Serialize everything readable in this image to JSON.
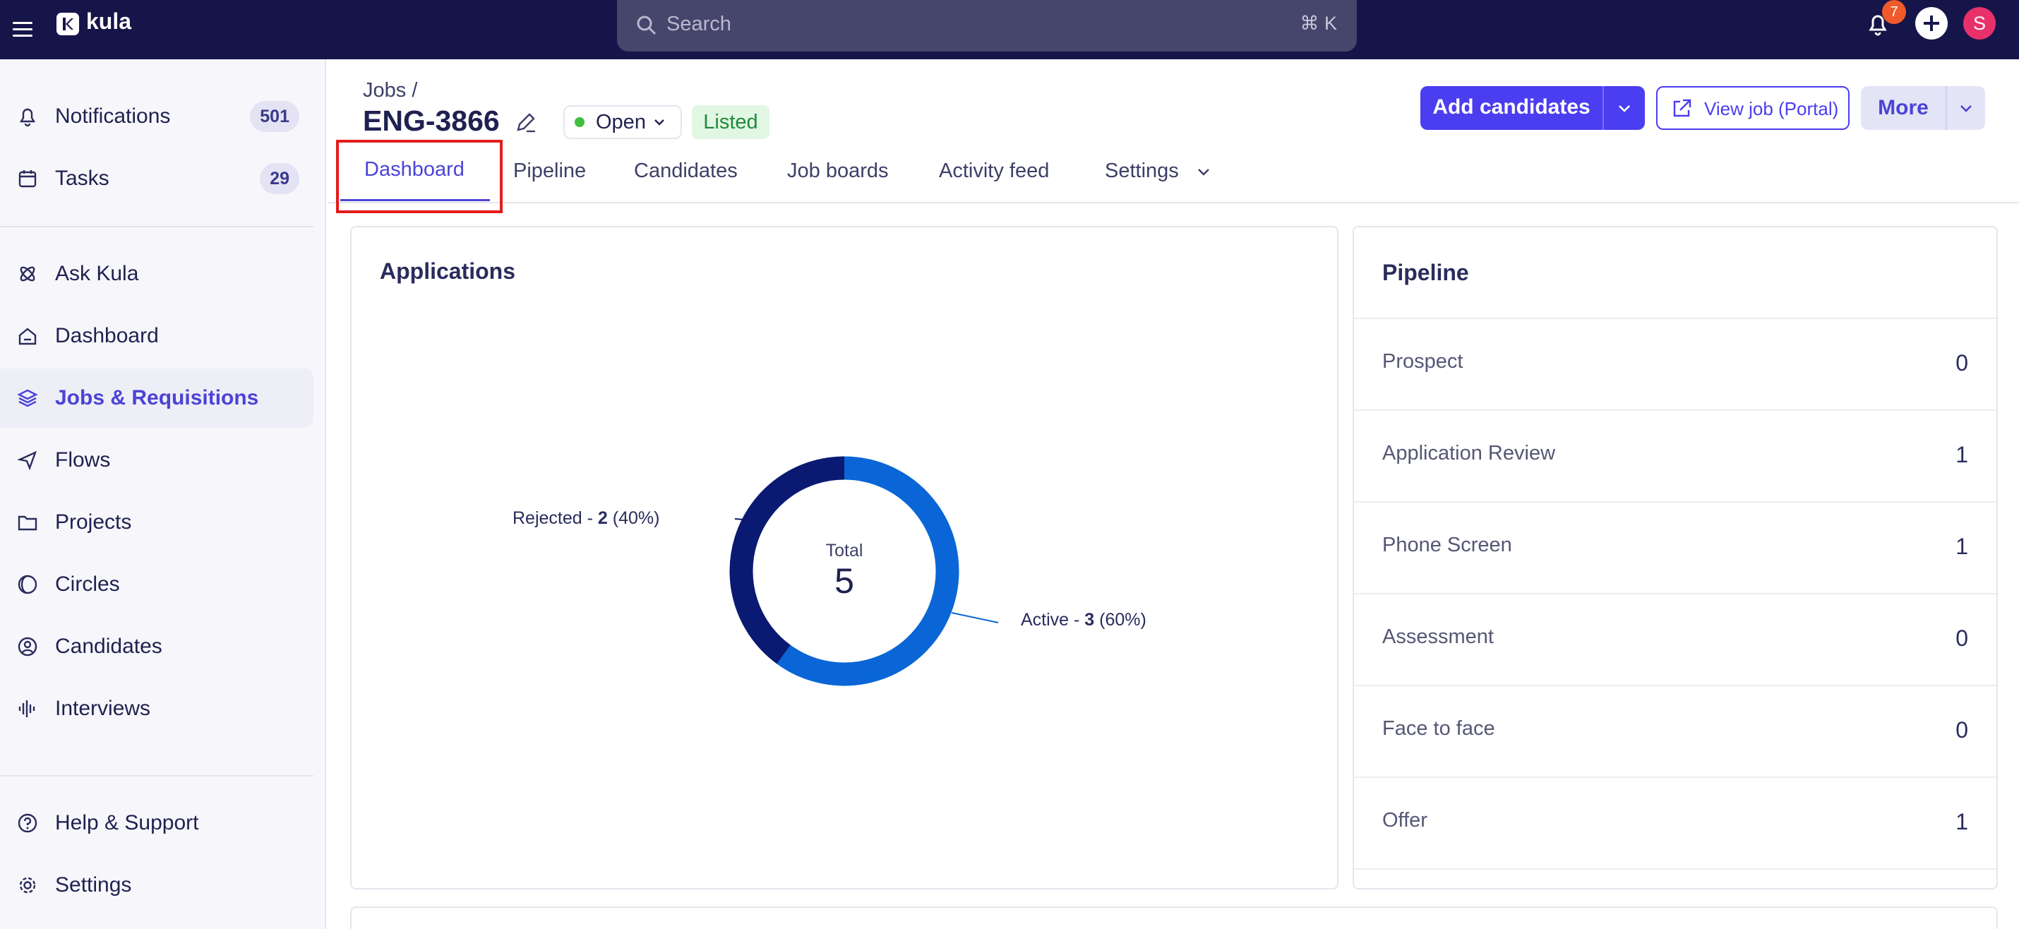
{
  "app": {
    "name": "kula"
  },
  "search": {
    "placeholder": "Search",
    "shortcut": "⌘ K"
  },
  "topbar": {
    "notification_count": "7",
    "user_initial": "S"
  },
  "sidebar": {
    "items": [
      {
        "label": "Notifications",
        "badge": "501",
        "icon": "bell-icon"
      },
      {
        "label": "Tasks",
        "badge": "29",
        "icon": "calendar-icon"
      },
      {
        "label": "Ask Kula",
        "icon": "atom-icon"
      },
      {
        "label": "Dashboard",
        "icon": "home-icon"
      },
      {
        "label": "Jobs & Requisitions",
        "icon": "layers-icon",
        "active": true
      },
      {
        "label": "Flows",
        "icon": "send-icon"
      },
      {
        "label": "Projects",
        "icon": "folder-icon"
      },
      {
        "label": "Circles",
        "icon": "circles-icon"
      },
      {
        "label": "Candidates",
        "icon": "user-circle-icon"
      },
      {
        "label": "Interviews",
        "icon": "audio-wave-icon"
      },
      {
        "label": "Help & Support",
        "icon": "help-icon"
      },
      {
        "label": "Settings",
        "icon": "gear-icon"
      }
    ]
  },
  "header": {
    "breadcrumb": "Jobs /",
    "job_id": "ENG-3866",
    "status": "Open",
    "listed": "Listed",
    "add_candidates": "Add candidates",
    "view_job": "View job (Portal)",
    "more": "More"
  },
  "tabs": [
    "Dashboard",
    "Pipeline",
    "Candidates",
    "Job boards",
    "Activity feed",
    "Settings"
  ],
  "applications": {
    "title": "Applications",
    "total_label": "Total",
    "total_value": "5",
    "rejected": {
      "name": "Rejected - ",
      "count": "2",
      "pct": " (40%)",
      "color": "#0a1a72"
    },
    "active": {
      "name": "Active - ",
      "count": "3",
      "pct": " (60%)",
      "color": "#0a66d6"
    }
  },
  "chart_data": {
    "type": "pie",
    "categories": [
      "Active",
      "Rejected"
    ],
    "values": [
      3,
      2
    ],
    "percentages": [
      60,
      40
    ],
    "title": "Applications",
    "center_text": "Total 5"
  },
  "pipeline": {
    "title": "Pipeline",
    "stages": [
      {
        "name": "Prospect",
        "count": "0"
      },
      {
        "name": "Application Review",
        "count": "1"
      },
      {
        "name": "Phone Screen",
        "count": "1"
      },
      {
        "name": "Assessment",
        "count": "0"
      },
      {
        "name": "Face to face",
        "count": "0"
      },
      {
        "name": "Offer",
        "count": "1"
      }
    ]
  }
}
